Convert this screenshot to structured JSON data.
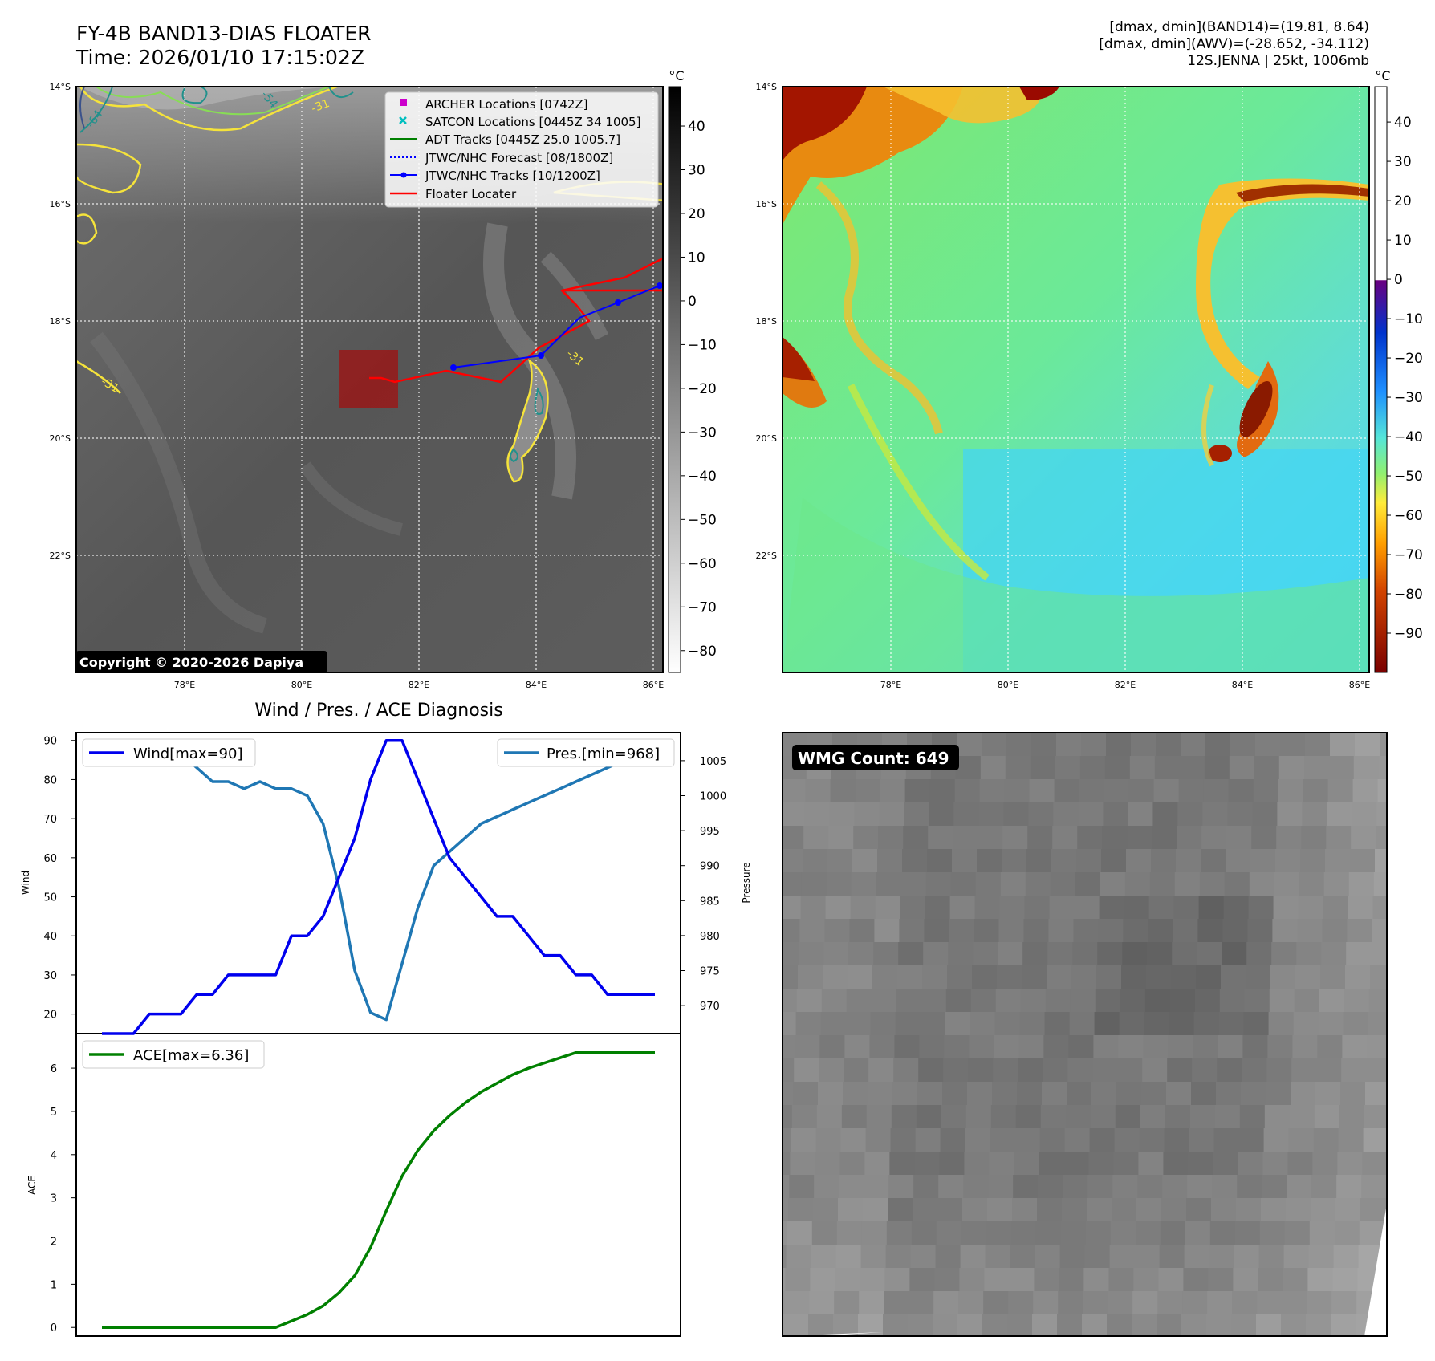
{
  "header": {
    "title": "FY-4B BAND13-DIAS FLOATER",
    "time": "Time: 2026/01/10 17:15:02Z",
    "info": [
      "[dmax, dmin](BAND14)=(19.81, 8.64)",
      "[dmax, dmin](AWV)=(-28.652, -34.112)",
      "12S.JENNA | 25kt, 1006mb"
    ]
  },
  "map_ir": {
    "lat_labels": [
      "14°S",
      "16°S",
      "18°S",
      "20°S",
      "22°S"
    ],
    "lon_labels": [
      "78°E",
      "80°E",
      "82°E",
      "84°E",
      "86°E"
    ],
    "colorbar_unit": "°C",
    "colorbar_ticks": [
      "40",
      "30",
      "20",
      "10",
      "0",
      "−10",
      "−20",
      "−30",
      "−40",
      "−50",
      "−60",
      "−70",
      "−80"
    ],
    "contour_labels": [
      "-64",
      "-54",
      "-31",
      "-31",
      "-31",
      "-31"
    ],
    "legend": [
      {
        "label": "ARCHER Locations [0742Z]",
        "color": "#cc00cc",
        "marker": "square"
      },
      {
        "label": "SATCON Locations [0445Z 34 1005]",
        "color": "#00bfbf",
        "marker": "x"
      },
      {
        "label": "ADT Tracks [0445Z 25.0 1005.7]",
        "color": "#008000",
        "marker": "line"
      },
      {
        "label": "JTWC/NHC Forecast [08/1800Z]",
        "color": "#0000ff",
        "marker": "dotted"
      },
      {
        "label": "JTWC/NHC Tracks [10/1200Z]",
        "color": "#0000ff",
        "marker": "line-dot"
      },
      {
        "label": "Floater Locater",
        "color": "#ff0000",
        "marker": "line"
      }
    ],
    "copyright": "Copyright © 2020-2026 Dapiya"
  },
  "map_awv": {
    "lat_labels": [
      "14°S",
      "16°S",
      "18°S",
      "20°S",
      "22°S"
    ],
    "lon_labels": [
      "78°E",
      "80°E",
      "82°E",
      "84°E",
      "86°E"
    ],
    "colorbar_unit": "°C",
    "colorbar_ticks": [
      "40",
      "30",
      "20",
      "10",
      "0",
      "−10",
      "−20",
      "−30",
      "−40",
      "−50",
      "−60",
      "−70",
      "−80",
      "−90"
    ]
  },
  "diagnosis": {
    "title": "Wind / Pres. / ACE Diagnosis",
    "wind_axis_label": "Wind",
    "pressure_axis_label": "Pressure",
    "ace_axis_label": "ACE",
    "wind_ticks": [
      "90",
      "80",
      "70",
      "60",
      "50",
      "40",
      "30",
      "20"
    ],
    "pressure_ticks": [
      "1005",
      "1000",
      "995",
      "990",
      "985",
      "980",
      "975",
      "970"
    ],
    "ace_ticks": [
      "6",
      "5",
      "4",
      "3",
      "2",
      "1",
      "0"
    ],
    "wind_legend": "Wind[max=90]",
    "pressure_legend": "Pres.[min=968]",
    "ace_legend": "ACE[max=6.36]",
    "colors": {
      "wind": "#0000ee",
      "pressure": "#1f77b4",
      "ace": "#008000"
    }
  },
  "wmg": {
    "label": "WMG Count: 649"
  },
  "chart_data": [
    {
      "type": "line",
      "title": "Wind / Pres. / ACE Diagnosis",
      "ylabel": "Wind",
      "ylim": [
        15,
        92
      ],
      "series": [
        {
          "name": "Wind[max=90]",
          "axis": "left",
          "values": [
            15,
            15,
            15,
            20,
            20,
            20,
            25,
            25,
            30,
            30,
            30,
            30,
            40,
            40,
            45,
            55,
            65,
            80,
            90,
            90,
            80,
            70,
            60,
            55,
            50,
            45,
            45,
            40,
            35,
            35,
            30,
            30,
            25,
            25,
            25,
            25
          ]
        },
        {
          "name": "Pres.[min=968]",
          "axis": "right",
          "ylabel": "Pressure",
          "ylim": [
            966,
            1009
          ],
          "values": [
            1007,
            1007,
            1007,
            1007,
            1007,
            1006,
            1004,
            1002,
            1002,
            1001,
            1002,
            1001,
            1001,
            1000,
            996,
            987,
            975,
            969,
            968,
            976,
            984,
            990,
            992,
            994,
            996,
            997,
            998,
            999,
            1000,
            1001,
            1002,
            1003,
            1004,
            1005,
            1006,
            1006
          ]
        }
      ]
    },
    {
      "type": "area",
      "ylabel": "ACE",
      "ylim": [
        -0.2,
        6.8
      ],
      "series": [
        {
          "name": "ACE[max=6.36]",
          "values": [
            0,
            0,
            0,
            0,
            0,
            0,
            0,
            0,
            0,
            0,
            0,
            0,
            0.15,
            0.3,
            0.5,
            0.8,
            1.2,
            1.85,
            2.7,
            3.5,
            4.1,
            4.55,
            4.9,
            5.2,
            5.45,
            5.65,
            5.85,
            6.0,
            6.12,
            6.24,
            6.36,
            6.36,
            6.36,
            6.36,
            6.36,
            6.36
          ]
        }
      ]
    }
  ]
}
